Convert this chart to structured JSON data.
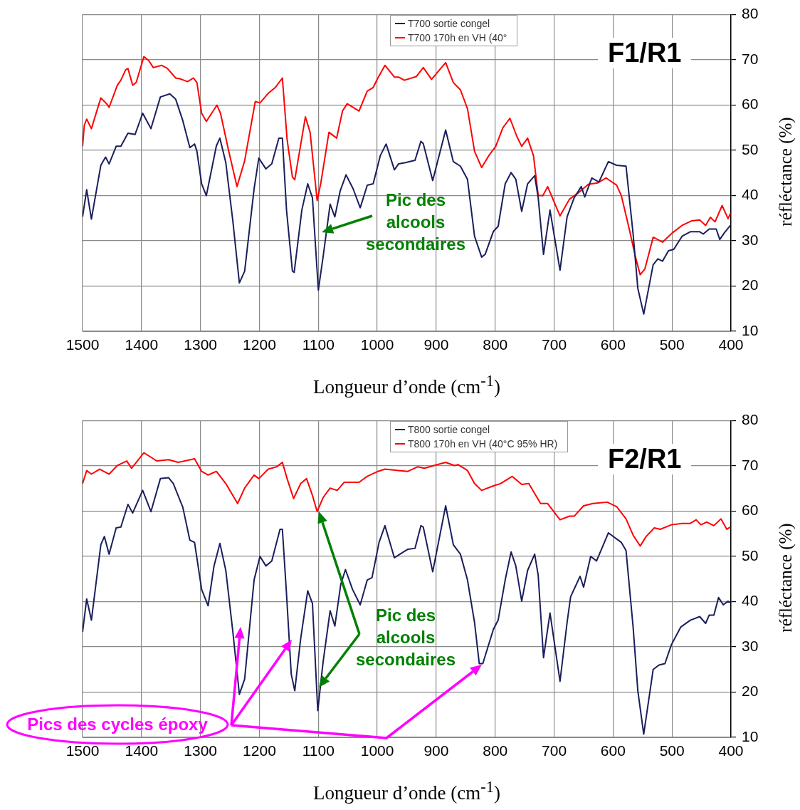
{
  "chart_data": [
    {
      "type": "line",
      "title": "F1/R1",
      "xlabel": "Longueur d’onde (cm$^{-1}$)",
      "ylabel": "réfléctance (%)",
      "xlim": [
        1500,
        400
      ],
      "xticks": [
        1500,
        1400,
        1300,
        1200,
        1100,
        1000,
        900,
        800,
        700,
        600,
        500,
        400
      ],
      "ylim": [
        10,
        80
      ],
      "yticks": [
        10,
        20,
        30,
        40,
        50,
        60,
        70,
        80
      ],
      "grid": true,
      "legend": "top",
      "annotations": [
        "Pic des alcools secondaires"
      ],
      "series": [
        {
          "name": "T700 sortie congel",
          "color": "#1a1f5c",
          "x": [
            1500,
            1493,
            1485,
            1469,
            1461,
            1455,
            1443,
            1435,
            1423,
            1411,
            1398,
            1384,
            1368,
            1352,
            1342,
            1330,
            1318,
            1310,
            1306,
            1298,
            1290,
            1273,
            1267,
            1257,
            1245,
            1234,
            1225,
            1209,
            1201,
            1189,
            1179,
            1167,
            1161,
            1154,
            1144,
            1141,
            1128,
            1118,
            1110,
            1100,
            1092,
            1080,
            1072,
            1063,
            1053,
            1041,
            1029,
            1017,
            1007,
            995,
            985,
            971,
            964,
            952,
            936,
            926,
            922,
            906,
            884,
            871,
            859,
            847,
            835,
            823,
            817,
            803,
            795,
            783,
            773,
            765,
            755,
            745,
            733,
            727,
            718,
            707,
            690,
            678,
            666,
            654,
            648,
            636,
            624,
            608,
            594,
            578,
            566,
            558,
            548,
            532,
            524,
            516,
            506,
            497,
            483,
            469,
            453,
            447,
            437,
            425,
            419,
            411,
            401
          ],
          "values": [
            35.3,
            41.3,
            34.8,
            46.7,
            48.5,
            47,
            50.9,
            50.9,
            53.8,
            53.5,
            58.2,
            54.8,
            61.8,
            62.5,
            61.3,
            56.6,
            50.6,
            51.4,
            49.8,
            42.6,
            40,
            51,
            52.7,
            47.3,
            34.3,
            20.7,
            23.3,
            41.5,
            48.3,
            45.9,
            47,
            52.7,
            52.7,
            36.8,
            23.3,
            23,
            36.8,
            42.6,
            39.5,
            19.1,
            26.4,
            38.1,
            35.3,
            41,
            44.6,
            41.5,
            37.3,
            42.3,
            42.6,
            48.8,
            51.4,
            45.7,
            47,
            47.3,
            47.8,
            52,
            51.5,
            43.3,
            54.5,
            47.5,
            46.5,
            43.6,
            31,
            26.4,
            27,
            32.1,
            33.2,
            42.6,
            45.1,
            43.6,
            36.5,
            42.6,
            44.4,
            39.5,
            27,
            36.8,
            23.5,
            35.3,
            39.5,
            42,
            39.7,
            43.9,
            43,
            47.5,
            46.7,
            46.5,
            31.5,
            19.5,
            13.8,
            24.7,
            26,
            25.5,
            27.8,
            28.1,
            31,
            32,
            32,
            31.5,
            32.6,
            32.6,
            30.3,
            31.8,
            33.4
          ]
        },
        {
          "name": "T700 170h en VH (40°",
          "color": "#ff0000",
          "x": [
            1500,
            1497,
            1493,
            1485,
            1469,
            1459,
            1455,
            1441,
            1435,
            1427,
            1423,
            1415,
            1409,
            1396,
            1388,
            1380,
            1366,
            1356,
            1342,
            1334,
            1322,
            1312,
            1306,
            1298,
            1290,
            1272,
            1266,
            1252,
            1238,
            1225,
            1207,
            1199,
            1185,
            1173,
            1161,
            1153,
            1144,
            1140,
            1122,
            1114,
            1102,
            1096,
            1082,
            1069,
            1059,
            1051,
            1031,
            1017,
            1007,
            999,
            987,
            971,
            964,
            954,
            934,
            922,
            908,
            884,
            871,
            859,
            847,
            835,
            823,
            811,
            799,
            787,
            775,
            763,
            755,
            745,
            735,
            727,
            719,
            711,
            690,
            674,
            658,
            642,
            626,
            612,
            594,
            586,
            572,
            562,
            554,
            546,
            532,
            516,
            499,
            483,
            467,
            453,
            443,
            435,
            427,
            415,
            405,
            401
          ],
          "values": [
            50.9,
            55.6,
            56.9,
            54.8,
            61.6,
            60.3,
            59.5,
            64.4,
            65.5,
            67.8,
            68.1,
            64.4,
            65,
            70.7,
            69.9,
            68.3,
            68.8,
            68.1,
            66,
            65.8,
            65.2,
            66,
            65,
            58.2,
            56.4,
            60,
            58.2,
            49.8,
            42,
            47.7,
            60.8,
            60.5,
            62.6,
            63.9,
            66,
            52.4,
            44.1,
            43.5,
            57.4,
            54,
            38.9,
            42.6,
            54,
            52.7,
            58.7,
            60.3,
            58.7,
            63.1,
            63.9,
            66,
            68.8,
            66.2,
            66.2,
            65.5,
            66.3,
            68.3,
            65.7,
            69.4,
            65,
            63.4,
            59.2,
            49.8,
            46.2,
            48.8,
            50.9,
            55,
            57.1,
            53,
            50.9,
            52.7,
            48.8,
            40,
            40,
            42,
            35.5,
            39.2,
            40.7,
            42.5,
            42.8,
            43.9,
            42.3,
            40,
            32.3,
            26.4,
            22.5,
            23.8,
            30.8,
            29.7,
            31.8,
            33.4,
            34.4,
            34.6,
            33.4,
            35.2,
            34.2,
            37.8,
            34.9,
            36
          ]
        }
      ]
    },
    {
      "type": "line",
      "title": "F2/R1",
      "xlabel": "Longueur d’onde (cm$^{-1}$)",
      "ylabel": "réfléctance (%)",
      "xlim": [
        1500,
        400
      ],
      "xticks": [
        1500,
        1400,
        1300,
        1200,
        1100,
        1000,
        900,
        800,
        700,
        600,
        500,
        400
      ],
      "ylim": [
        10,
        80
      ],
      "yticks": [
        10,
        20,
        30,
        40,
        50,
        60,
        70,
        80
      ],
      "grid": true,
      "legend": "top",
      "annotations": [
        "Pic des alcools secondaires",
        "Pics des cycles époxy"
      ],
      "series": [
        {
          "name": "T800 sortie congel",
          "color": "#1a1f5c",
          "x": [
            1500,
            1493,
            1485,
            1469,
            1463,
            1455,
            1443,
            1435,
            1423,
            1415,
            1398,
            1384,
            1368,
            1354,
            1346,
            1330,
            1318,
            1310,
            1298,
            1287,
            1277,
            1267,
            1257,
            1245,
            1234,
            1225,
            1209,
            1199,
            1189,
            1179,
            1165,
            1161,
            1154,
            1146,
            1140,
            1130,
            1118,
            1110,
            1101,
            1092,
            1080,
            1072,
            1062,
            1054,
            1042,
            1029,
            1017,
            1009,
            997,
            987,
            971,
            964,
            948,
            936,
            926,
            922,
            906,
            884,
            871,
            859,
            847,
            835,
            827,
            821,
            803,
            795,
            783,
            773,
            765,
            755,
            745,
            733,
            727,
            718,
            707,
            690,
            678,
            672,
            656,
            650,
            638,
            628,
            608,
            586,
            578,
            566,
            558,
            548,
            532,
            522,
            512,
            501,
            485,
            469,
            453,
            443,
            437,
            429,
            421,
            413,
            405,
            401
          ],
          "values": [
            33.3,
            40.6,
            35.9,
            52.6,
            54.4,
            50.5,
            56.3,
            56.5,
            61.5,
            59.6,
            64.6,
            59.9,
            67.2,
            67.4,
            66.1,
            60.9,
            53.6,
            53.1,
            42.7,
            39.1,
            47.9,
            52.9,
            46.9,
            33.3,
            19.5,
            22.9,
            44.8,
            50,
            47.9,
            49,
            56,
            56,
            41.7,
            24,
            20.3,
            31.8,
            42.4,
            39.6,
            15.9,
            26.6,
            38,
            34.6,
            43.8,
            47.1,
            42.7,
            39.3,
            44.8,
            45.3,
            53.1,
            56.8,
            49.7,
            50.3,
            51.6,
            51.8,
            56.8,
            56.5,
            46.6,
            61.2,
            52.6,
            50.5,
            44.8,
            35.4,
            26.3,
            26.3,
            33.9,
            35.9,
            44.8,
            51,
            47.9,
            40.1,
            46.9,
            50.5,
            45.8,
            27.6,
            37.5,
            22.4,
            35.4,
            41.1,
            45.6,
            43.2,
            50,
            49,
            55.2,
            53.1,
            51.3,
            34.4,
            20.3,
            10.7,
            25,
            26,
            26.3,
            30.5,
            34.4,
            35.9,
            36.7,
            35.2,
            37,
            37,
            40.9,
            39.3,
            40.1,
            39.8
          ]
        },
        {
          "name": "T800 170h en VH (40°C 95% HR)",
          "color": "#ff0000",
          "x": [
            1500,
            1493,
            1485,
            1471,
            1455,
            1441,
            1425,
            1417,
            1396,
            1386,
            1374,
            1354,
            1338,
            1310,
            1298,
            1287,
            1273,
            1257,
            1237,
            1225,
            1209,
            1201,
            1185,
            1171,
            1161,
            1153,
            1142,
            1130,
            1120,
            1110,
            1102,
            1092,
            1080,
            1068,
            1056,
            1031,
            1017,
            999,
            987,
            964,
            948,
            932,
            920,
            904,
            884,
            869,
            863,
            847,
            835,
            823,
            803,
            791,
            771,
            755,
            743,
            723,
            711,
            690,
            674,
            666,
            650,
            634,
            610,
            594,
            578,
            566,
            554,
            544,
            530,
            520,
            501,
            483,
            469,
            459,
            451,
            441,
            429,
            417,
            407,
            401
          ],
          "values": [
            66.1,
            69,
            68.2,
            69.3,
            68.2,
            70.1,
            71.1,
            69.5,
            72.9,
            72.1,
            71.1,
            71.4,
            70.8,
            71.6,
            68.8,
            68,
            68.8,
            66.1,
            61.7,
            65.1,
            68,
            67.2,
            69.3,
            69.8,
            70.8,
            67.2,
            62.8,
            66.1,
            67.2,
            63.5,
            59.9,
            63,
            65.1,
            64.6,
            66.4,
            66.4,
            67.7,
            68.8,
            69.3,
            69,
            68.8,
            69.8,
            69.5,
            70.1,
            70.8,
            70.1,
            70.3,
            69,
            66.1,
            64.6,
            65.6,
            66.1,
            67.7,
            65.9,
            66.1,
            61.7,
            61.7,
            58.1,
            58.9,
            58.9,
            61.2,
            61.7,
            62,
            61,
            58.3,
            54.7,
            52.3,
            54.4,
            56.3,
            56,
            57,
            57.3,
            57.3,
            58.1,
            57,
            57.6,
            56.8,
            58.3,
            56,
            56.5
          ]
        }
      ]
    }
  ]
}
